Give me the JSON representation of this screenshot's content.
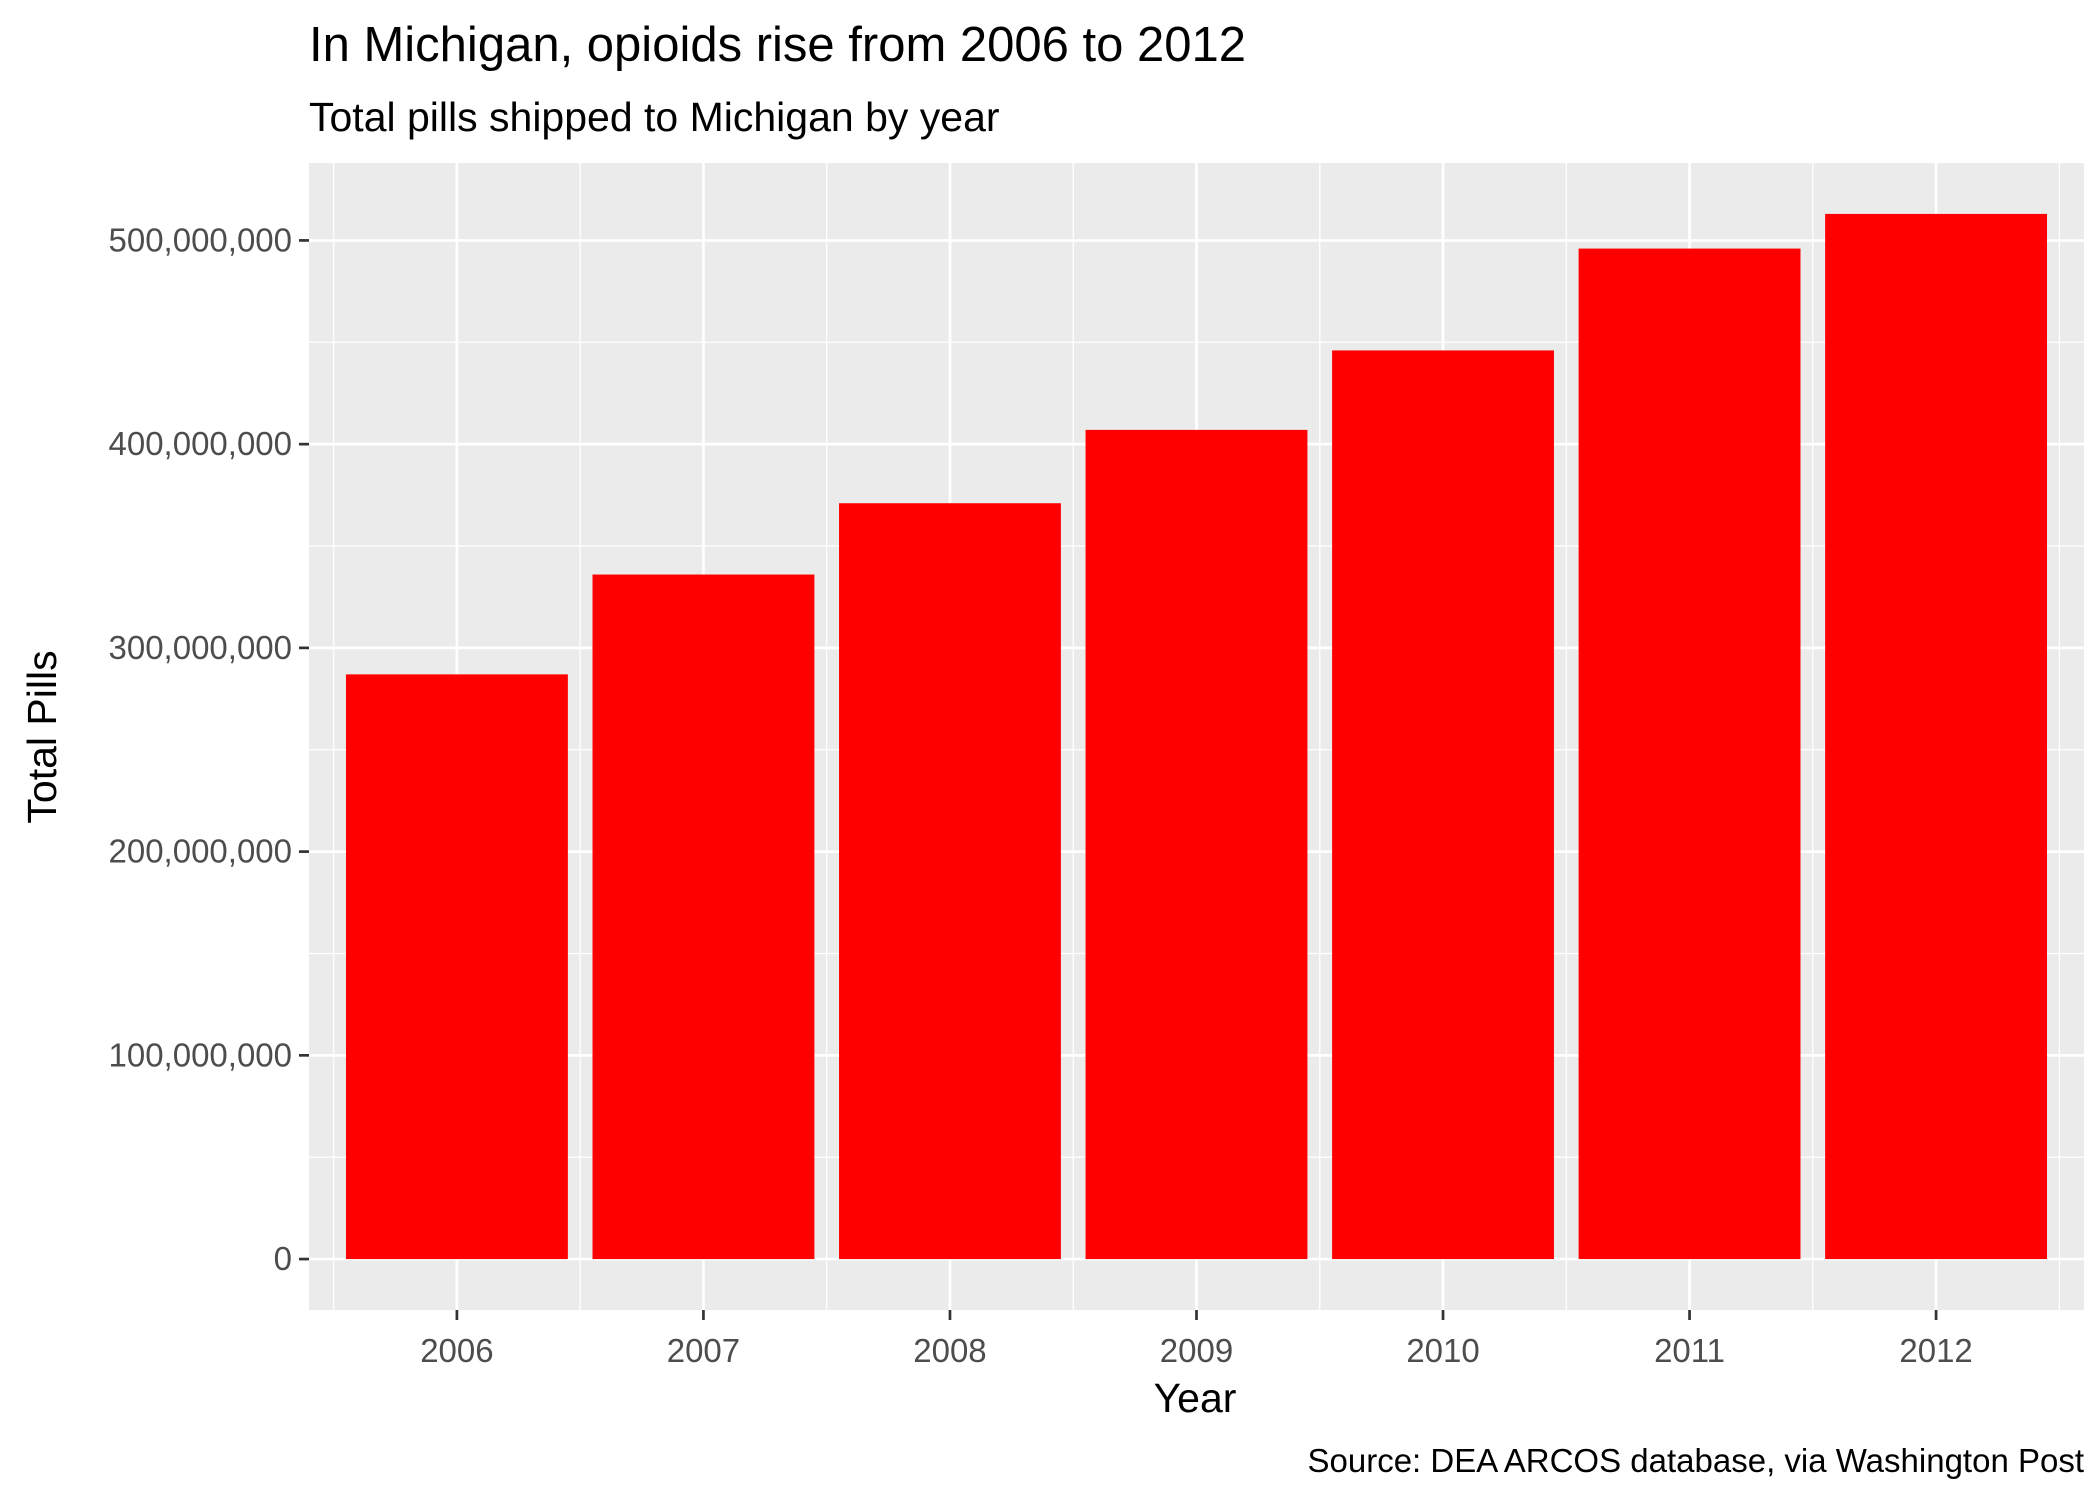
{
  "chart_data": {
    "type": "bar",
    "title": "In Michigan, opioids rise from 2006 to 2012",
    "subtitle": "Total pills shipped to Michigan by year",
    "xlabel": "Year",
    "ylabel": "Total Pills",
    "caption": "Source: DEA ARCOS database, via Washington Post",
    "categories": [
      "2006",
      "2007",
      "2008",
      "2009",
      "2010",
      "2011",
      "2012"
    ],
    "values": [
      287000000,
      336000000,
      371000000,
      407000000,
      446000000,
      496000000,
      513000000
    ],
    "ylim": [
      -25000000,
      538000000
    ],
    "yticks": [
      0,
      100000000,
      200000000,
      300000000,
      400000000,
      500000000
    ],
    "ytick_labels": [
      "0",
      "100,000,000",
      "200,000,000",
      "300,000,000",
      "400,000,000",
      "500,000,000"
    ],
    "bar_color": "#ff0000",
    "panel_background": "#ebebeb",
    "grid": true,
    "legend": "none"
  }
}
